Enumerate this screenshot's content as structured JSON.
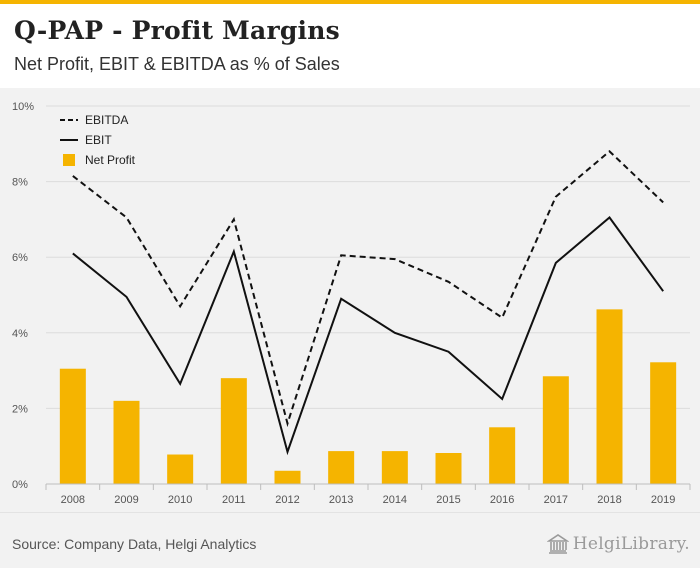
{
  "header": {
    "title": "Q-PAP - Profit Margins",
    "subtitle": "Net Profit, EBIT & EBITDA as % of Sales"
  },
  "footer": {
    "source": "Source: Company Data, Helgi Analytics",
    "logo_text": "HelgiLibrary."
  },
  "colors": {
    "bar": "#f5b400",
    "line": "#111111",
    "grid": "#dcdcdc",
    "background": "#f2f2f2",
    "accent": "#f5b400"
  },
  "chart_data": {
    "type": "bar",
    "title": "Q-PAP - Profit Margins",
    "subtitle": "Net Profit, EBIT & EBITDA as % of Sales",
    "xlabel": "",
    "ylabel": "",
    "categories": [
      "2008",
      "2009",
      "2010",
      "2011",
      "2012",
      "2013",
      "2014",
      "2015",
      "2016",
      "2017",
      "2018",
      "2019"
    ],
    "y_ticks": [
      0,
      2,
      4,
      6,
      8,
      10
    ],
    "y_tick_suffix": "%",
    "ylim": [
      0,
      10
    ],
    "grid": true,
    "legend_position": "top-left",
    "series": [
      {
        "name": "EBITDA",
        "type": "line",
        "style": "dashed",
        "values": [
          8.15,
          7.05,
          4.7,
          7.0,
          1.6,
          6.05,
          5.95,
          5.35,
          4.4,
          7.6,
          8.8,
          7.45
        ]
      },
      {
        "name": "EBIT",
        "type": "line",
        "style": "solid",
        "values": [
          6.1,
          4.95,
          2.65,
          6.15,
          0.85,
          4.9,
          4.0,
          3.5,
          2.25,
          5.85,
          7.05,
          5.1
        ]
      },
      {
        "name": "Net Profit",
        "type": "bar",
        "values": [
          3.05,
          2.2,
          0.78,
          2.8,
          0.35,
          0.87,
          0.87,
          0.82,
          1.5,
          2.85,
          4.62,
          3.22
        ]
      }
    ]
  }
}
